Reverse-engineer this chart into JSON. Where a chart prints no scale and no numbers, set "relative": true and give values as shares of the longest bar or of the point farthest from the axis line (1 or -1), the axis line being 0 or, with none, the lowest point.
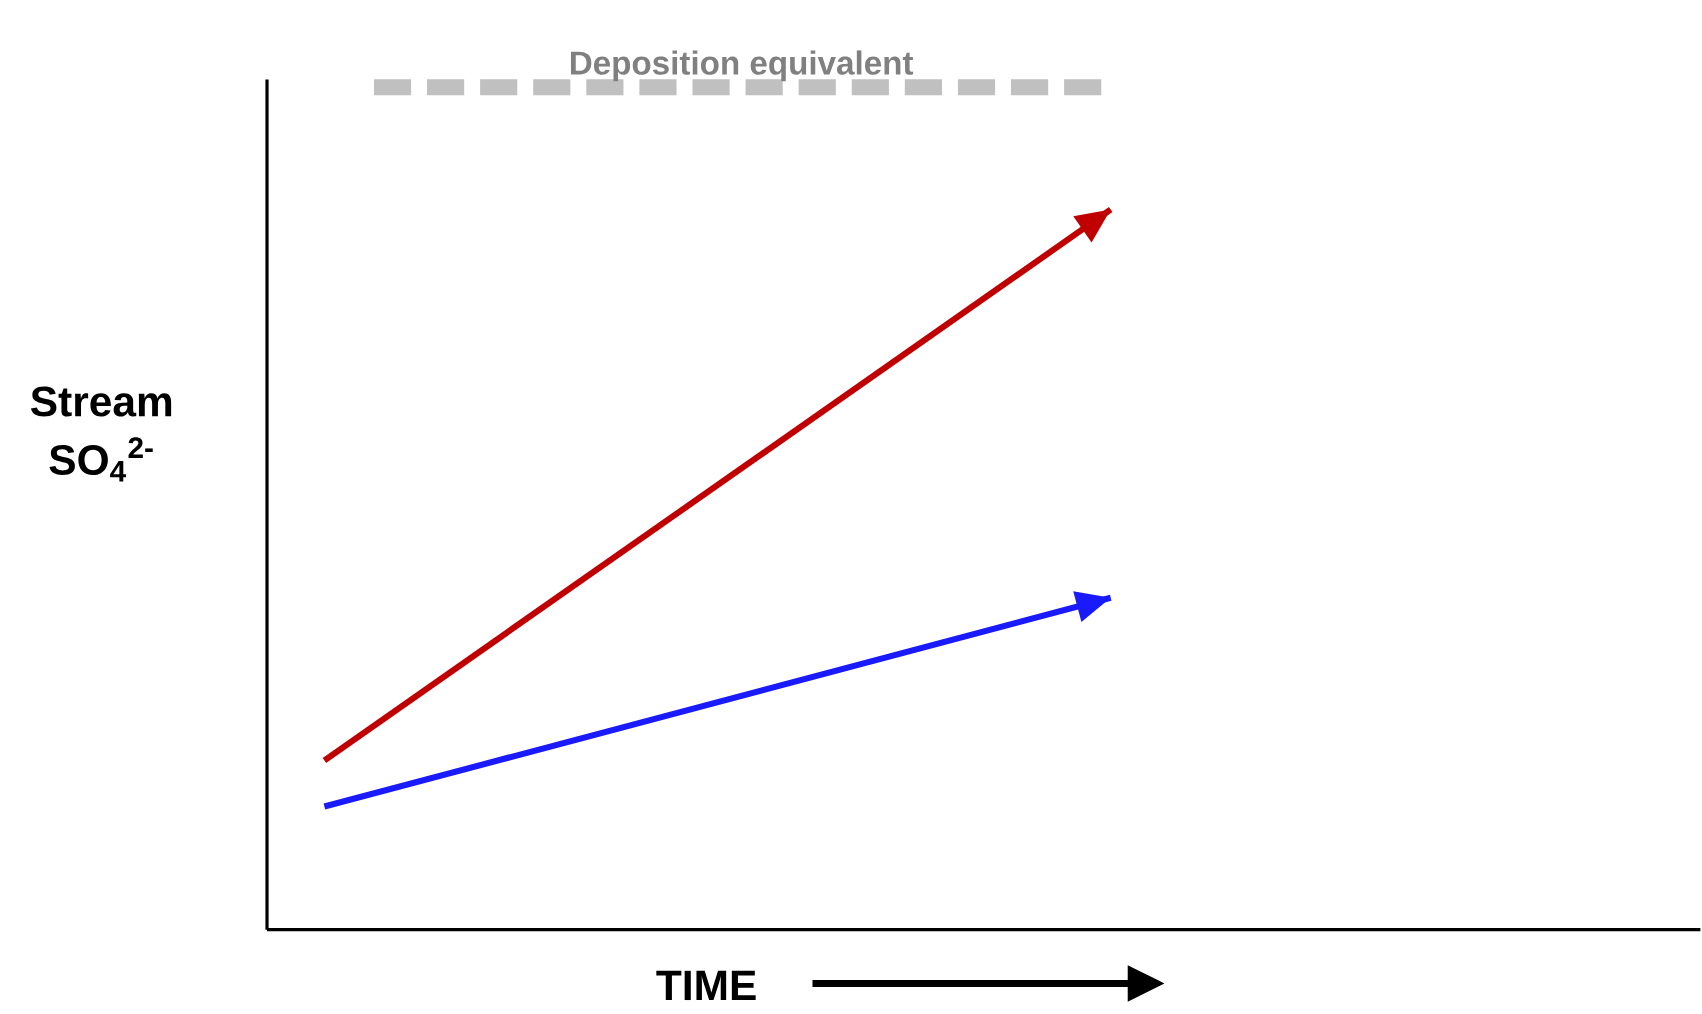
{
  "chart_data": {
    "type": "line",
    "relative": true,
    "categories": [
      null,
      null
    ],
    "xlabel": "TIME",
    "ylabel": "Stream SO$_{4}$$^{2-}$",
    "series": [
      {
        "color": "#c00000",
        "values": [
          0.235,
          1
        ]
      },
      {
        "color": "#1a1aff",
        "values": [
          0.171,
          0.461
        ]
      }
    ],
    "ref_lines": [
      {
        "axis": "y",
        "value": 1.17,
        "label": "Deposition equivalent",
        "color": "#c0c0c0",
        "line_style": "dashed"
      }
    ],
    "marker": "none",
    "line_style": "solid"
  }
}
